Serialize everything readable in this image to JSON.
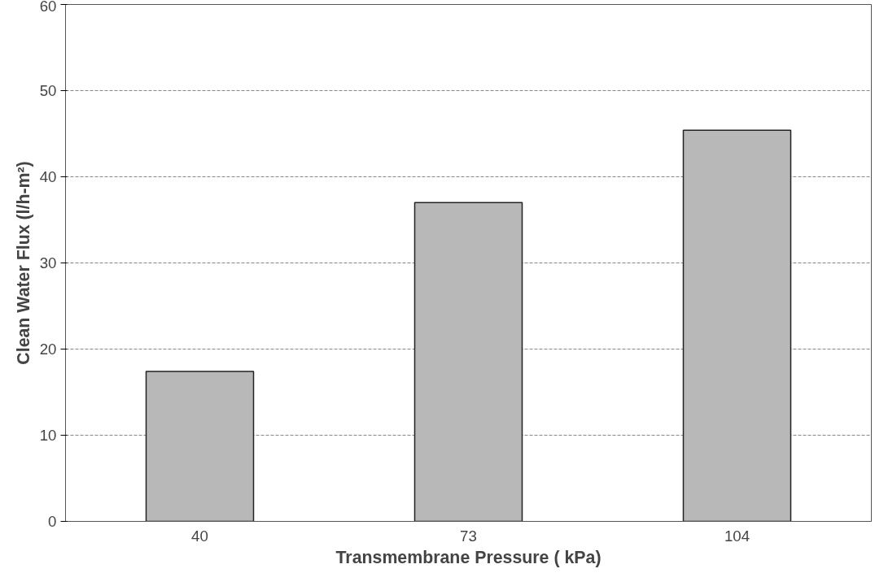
{
  "chart_data": {
    "type": "bar",
    "xlabel": "Transmembrane Pressure ( kPa)",
    "ylabel": "Clean Water Flux (l/h-m²)",
    "categories": [
      "40",
      "73",
      "104"
    ],
    "values": [
      17.4,
      37.0,
      45.4
    ],
    "color": "#b8b8b8",
    "ylim": [
      0,
      60
    ],
    "yticks": [
      0,
      10,
      20,
      30,
      40,
      50,
      60
    ],
    "grid": "y"
  }
}
